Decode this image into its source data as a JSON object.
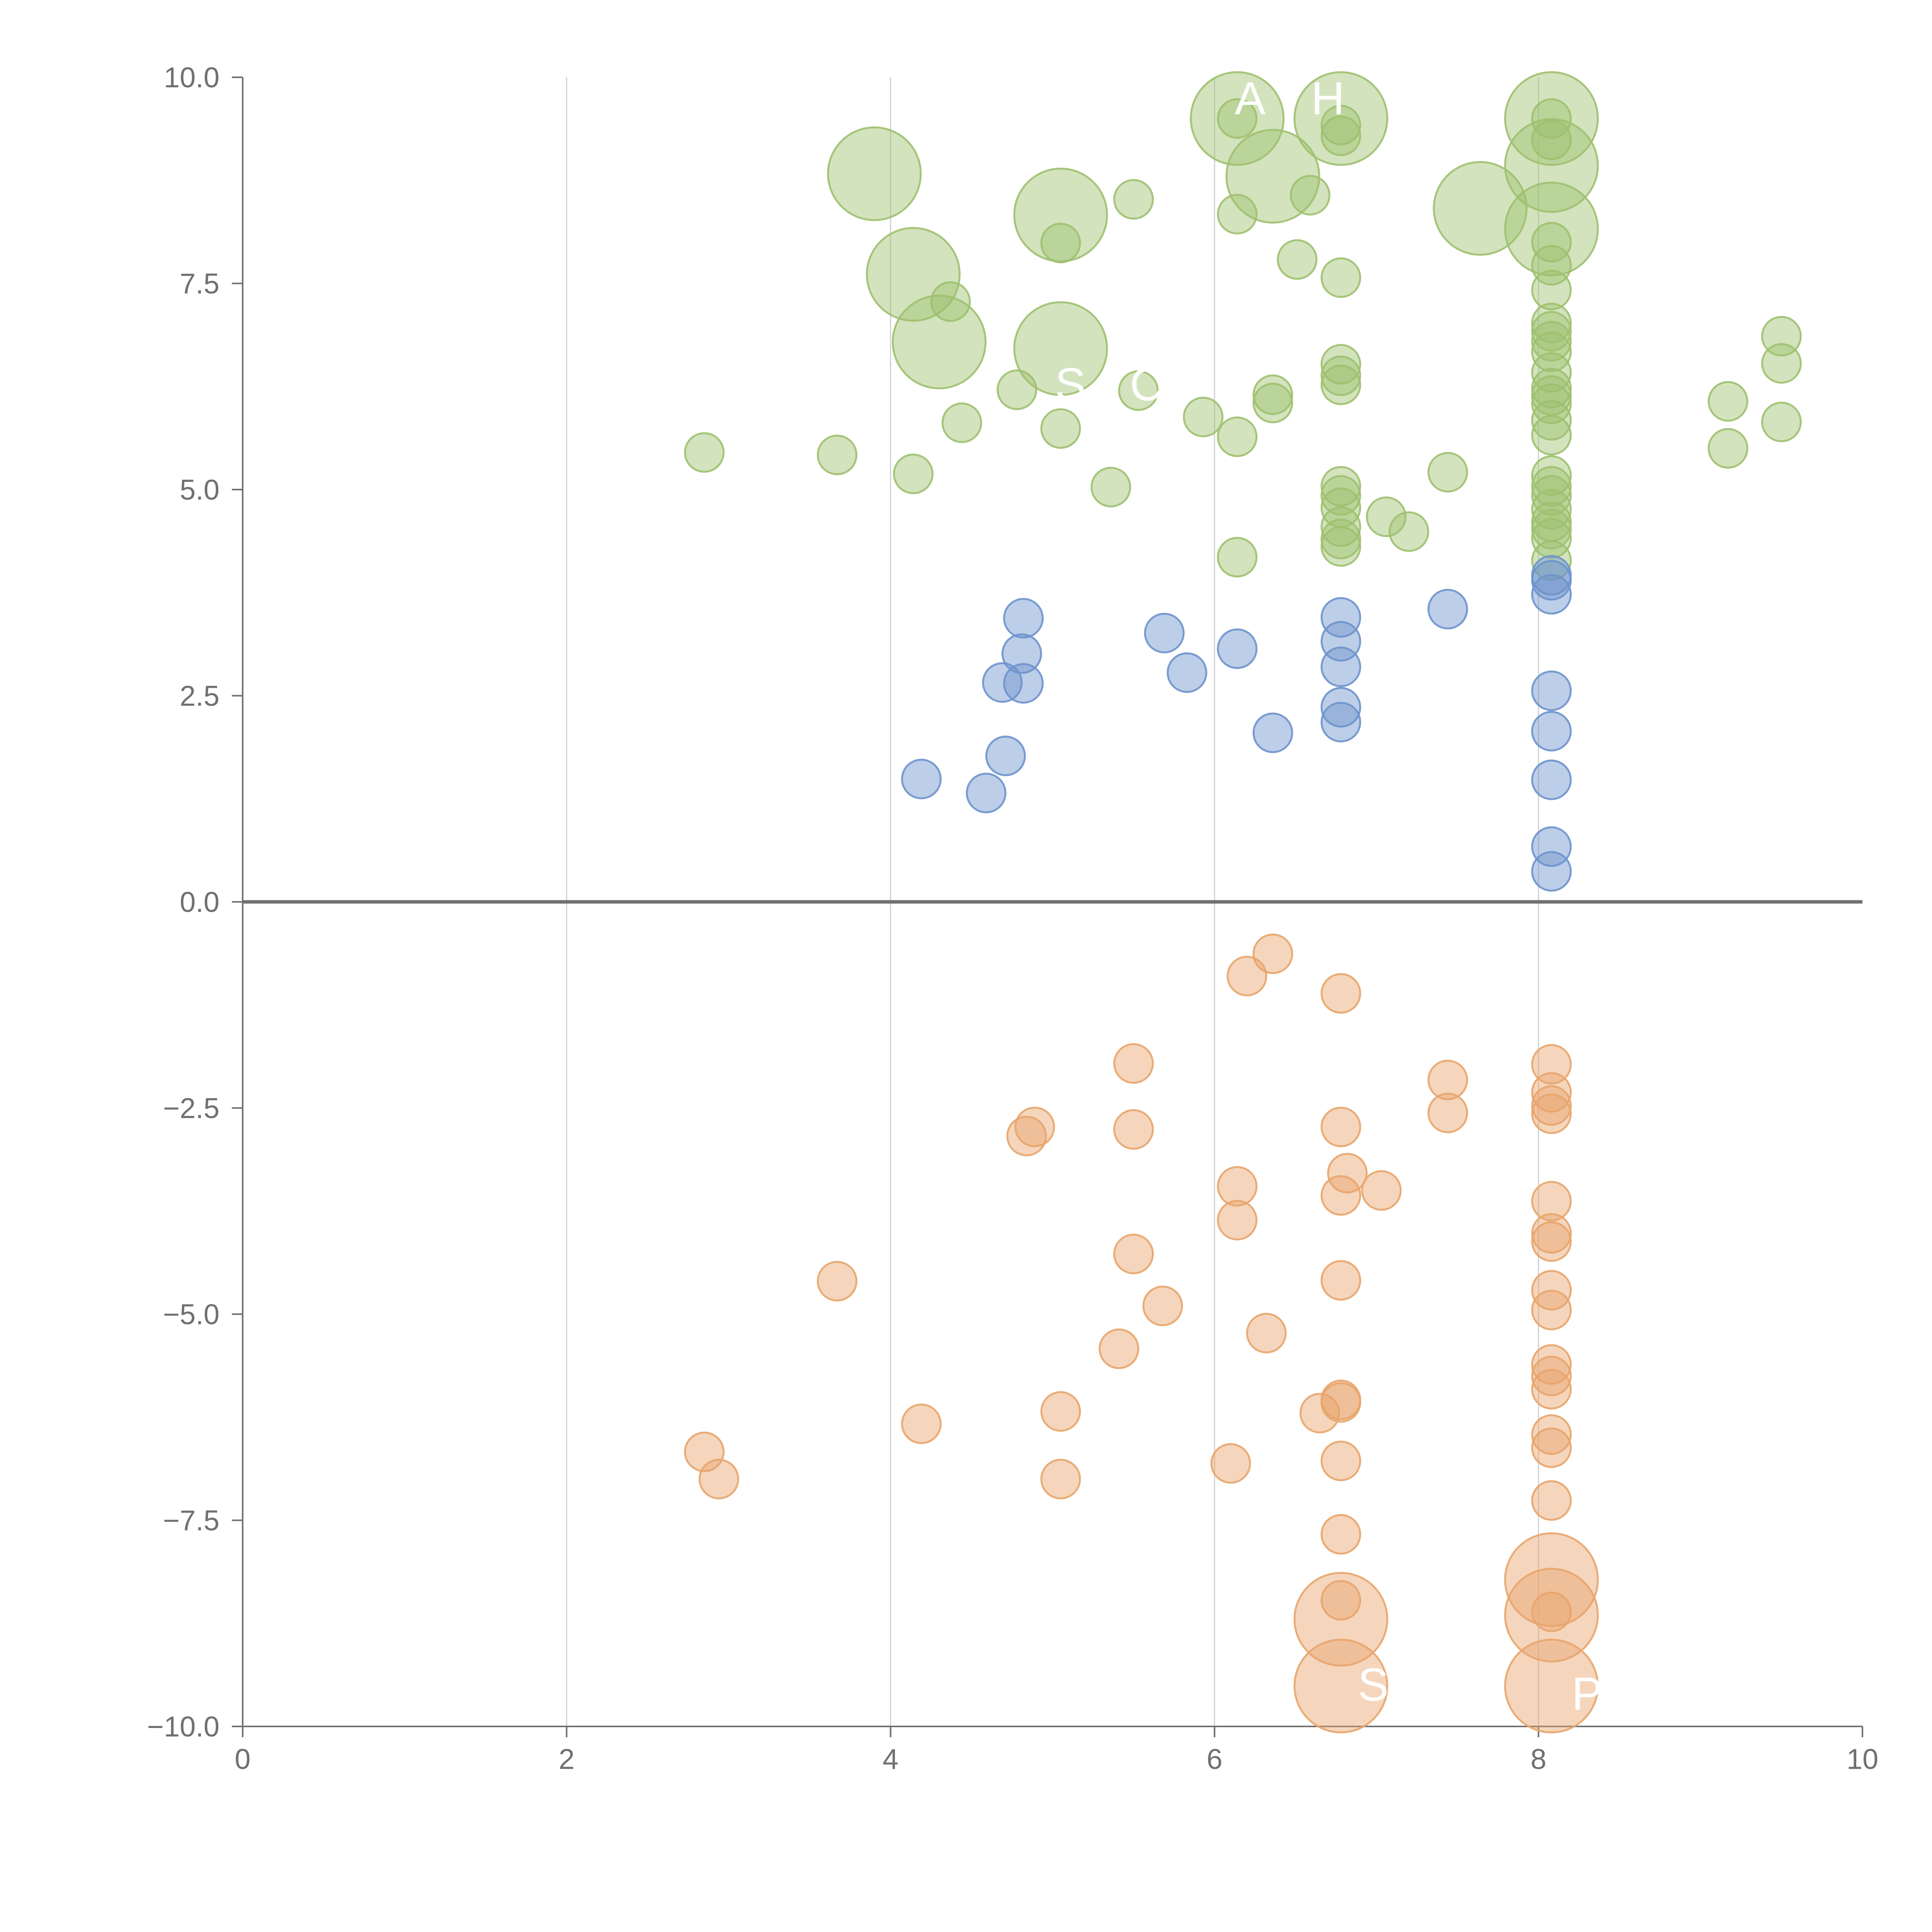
{
  "chart_data": {
    "type": "scatter",
    "title": "",
    "xlabel": "",
    "ylabel": "",
    "xlim": [
      0,
      10
    ],
    "ylim": [
      -10,
      10
    ],
    "x_ticks": [
      "0",
      "2",
      "4",
      "6",
      "8",
      "10"
    ],
    "y_ticks": [
      "10.0",
      "7.5",
      "5.0",
      "2.5",
      "0.0",
      "−2.5",
      "−5.0",
      "−7.5",
      "−10.0"
    ],
    "grid": "vertical lines at x = 2, 4, 6, 8",
    "baseline_y": 0,
    "colors": {
      "green": "#9ec06f",
      "blue": "#6d93cc",
      "orange": "#e8a56c",
      "axis": "#707070",
      "grid": "#d0d0d0"
    },
    "series": [
      {
        "name": "green",
        "color": "#9ec06f",
        "points": [
          {
            "x": 2.85,
            "y": 5.45,
            "s": 1
          },
          {
            "x": 3.67,
            "y": 5.42,
            "s": 1
          },
          {
            "x": 4.14,
            "y": 5.19,
            "s": 1
          },
          {
            "x": 4.44,
            "y": 5.81,
            "s": 1
          },
          {
            "x": 4.37,
            "y": 7.28,
            "s": 1
          },
          {
            "x": 4.78,
            "y": 6.21,
            "s": 1
          },
          {
            "x": 5.05,
            "y": 5.74,
            "s": 1
          },
          {
            "x": 5.05,
            "y": 7.99,
            "s": 1
          },
          {
            "x": 5.36,
            "y": 5.03,
            "s": 1
          },
          {
            "x": 5.5,
            "y": 8.52,
            "s": 1
          },
          {
            "x": 5.53,
            "y": 6.2,
            "s": 1
          },
          {
            "x": 5.93,
            "y": 5.88,
            "s": 1
          },
          {
            "x": 6.14,
            "y": 8.34,
            "s": 1
          },
          {
            "x": 6.14,
            "y": 9.5,
            "s": 1
          },
          {
            "x": 6.14,
            "y": 5.64,
            "s": 1
          },
          {
            "x": 6.14,
            "y": 4.18,
            "s": 1
          },
          {
            "x": 6.36,
            "y": 6.15,
            "s": 1
          },
          {
            "x": 6.36,
            "y": 6.05,
            "s": 1
          },
          {
            "x": 6.51,
            "y": 7.79,
            "s": 1
          },
          {
            "x": 6.59,
            "y": 8.57,
            "s": 1
          },
          {
            "x": 6.78,
            "y": 9.29,
            "s": 1
          },
          {
            "x": 6.78,
            "y": 9.42,
            "s": 1
          },
          {
            "x": 6.78,
            "y": 7.57,
            "s": 1
          },
          {
            "x": 6.78,
            "y": 6.52,
            "s": 1
          },
          {
            "x": 6.78,
            "y": 6.27,
            "s": 1
          },
          {
            "x": 6.78,
            "y": 6.38,
            "s": 1
          },
          {
            "x": 6.78,
            "y": 5.04,
            "s": 1
          },
          {
            "x": 6.78,
            "y": 4.93,
            "s": 1
          },
          {
            "x": 6.78,
            "y": 4.78,
            "s": 1
          },
          {
            "x": 6.78,
            "y": 4.55,
            "s": 1
          },
          {
            "x": 6.78,
            "y": 4.4,
            "s": 1
          },
          {
            "x": 6.78,
            "y": 4.31,
            "s": 1
          },
          {
            "x": 7.06,
            "y": 4.67,
            "s": 1
          },
          {
            "x": 7.2,
            "y": 4.49,
            "s": 1
          },
          {
            "x": 7.44,
            "y": 5.21,
            "s": 1
          },
          {
            "x": 8.08,
            "y": 9.5,
            "s": 1
          },
          {
            "x": 8.08,
            "y": 9.24,
            "s": 1
          },
          {
            "x": 8.08,
            "y": 8.0,
            "s": 1
          },
          {
            "x": 8.08,
            "y": 7.72,
            "s": 1
          },
          {
            "x": 8.08,
            "y": 7.42,
            "s": 1
          },
          {
            "x": 8.08,
            "y": 7.02,
            "s": 1
          },
          {
            "x": 8.08,
            "y": 6.92,
            "s": 1
          },
          {
            "x": 8.08,
            "y": 6.8,
            "s": 1
          },
          {
            "x": 8.08,
            "y": 6.67,
            "s": 1
          },
          {
            "x": 8.08,
            "y": 6.42,
            "s": 1
          },
          {
            "x": 8.08,
            "y": 6.23,
            "s": 1
          },
          {
            "x": 8.08,
            "y": 6.14,
            "s": 1
          },
          {
            "x": 8.08,
            "y": 6.04,
            "s": 1
          },
          {
            "x": 8.08,
            "y": 5.84,
            "s": 1
          },
          {
            "x": 8.08,
            "y": 5.66,
            "s": 1
          },
          {
            "x": 8.08,
            "y": 5.17,
            "s": 1
          },
          {
            "x": 8.08,
            "y": 5.04,
            "s": 1
          },
          {
            "x": 8.08,
            "y": 4.93,
            "s": 1
          },
          {
            "x": 8.08,
            "y": 4.76,
            "s": 1
          },
          {
            "x": 8.08,
            "y": 4.61,
            "s": 1
          },
          {
            "x": 8.08,
            "y": 4.52,
            "s": 1
          },
          {
            "x": 8.08,
            "y": 4.41,
            "s": 1
          },
          {
            "x": 8.08,
            "y": 4.14,
            "s": 1
          },
          {
            "x": 9.17,
            "y": 6.07,
            "s": 1
          },
          {
            "x": 9.17,
            "y": 5.5,
            "s": 1
          },
          {
            "x": 9.5,
            "y": 6.86,
            "s": 1
          },
          {
            "x": 9.5,
            "y": 6.53,
            "s": 1
          },
          {
            "x": 9.5,
            "y": 5.82,
            "s": 1
          },
          {
            "x": 3.9,
            "y": 8.83,
            "s": 2.4
          },
          {
            "x": 4.14,
            "y": 7.61,
            "s": 2.4
          },
          {
            "x": 4.3,
            "y": 6.79,
            "s": 2.4
          },
          {
            "x": 5.05,
            "y": 8.33,
            "s": 2.4
          },
          {
            "x": 5.05,
            "y": 6.71,
            "s": 2.4
          },
          {
            "x": 6.14,
            "y": 9.5,
            "s": 2.4
          },
          {
            "x": 6.36,
            "y": 8.8,
            "s": 2.4
          },
          {
            "x": 6.78,
            "y": 9.5,
            "s": 2.4
          },
          {
            "x": 7.64,
            "y": 8.41,
            "s": 2.4
          },
          {
            "x": 8.08,
            "y": 9.5,
            "s": 2.4
          },
          {
            "x": 8.08,
            "y": 8.93,
            "s": 2.4
          },
          {
            "x": 8.08,
            "y": 8.16,
            "s": 2.4
          }
        ]
      },
      {
        "name": "blue",
        "color": "#6d93cc",
        "points": [
          {
            "x": 4.19,
            "y": 1.49,
            "s": 1
          },
          {
            "x": 4.59,
            "y": 1.32,
            "s": 1
          },
          {
            "x": 4.69,
            "y": 2.66,
            "s": 1
          },
          {
            "x": 4.71,
            "y": 1.77,
            "s": 1
          },
          {
            "x": 4.81,
            "y": 3.01,
            "s": 1
          },
          {
            "x": 4.82,
            "y": 3.44,
            "s": 1
          },
          {
            "x": 4.82,
            "y": 2.65,
            "s": 1
          },
          {
            "x": 5.69,
            "y": 3.26,
            "s": 1
          },
          {
            "x": 5.83,
            "y": 2.78,
            "s": 1
          },
          {
            "x": 6.14,
            "y": 3.07,
            "s": 1
          },
          {
            "x": 6.36,
            "y": 2.05,
            "s": 1
          },
          {
            "x": 6.78,
            "y": 3.45,
            "s": 1
          },
          {
            "x": 6.78,
            "y": 3.16,
            "s": 1
          },
          {
            "x": 6.78,
            "y": 2.85,
            "s": 1
          },
          {
            "x": 6.78,
            "y": 2.36,
            "s": 1
          },
          {
            "x": 6.78,
            "y": 2.18,
            "s": 1
          },
          {
            "x": 7.44,
            "y": 3.55,
            "s": 1
          },
          {
            "x": 8.08,
            "y": 3.96,
            "s": 1
          },
          {
            "x": 8.08,
            "y": 3.9,
            "s": 1
          },
          {
            "x": 8.08,
            "y": 3.73,
            "s": 1
          },
          {
            "x": 8.08,
            "y": 2.56,
            "s": 1
          },
          {
            "x": 8.08,
            "y": 2.07,
            "s": 1
          },
          {
            "x": 8.08,
            "y": 1.48,
            "s": 1
          },
          {
            "x": 8.08,
            "y": 0.67,
            "s": 1
          },
          {
            "x": 8.08,
            "y": 0.37,
            "s": 1
          }
        ]
      },
      {
        "name": "orange",
        "color": "#e8a56c",
        "points": [
          {
            "x": 2.85,
            "y": -6.67,
            "s": 1
          },
          {
            "x": 2.94,
            "y": -7.0,
            "s": 1
          },
          {
            "x": 3.67,
            "y": -4.6,
            "s": 1
          },
          {
            "x": 4.19,
            "y": -6.33,
            "s": 1
          },
          {
            "x": 4.84,
            "y": -2.84,
            "s": 1
          },
          {
            "x": 4.89,
            "y": -2.73,
            "s": 1
          },
          {
            "x": 5.05,
            "y": -6.18,
            "s": 1
          },
          {
            "x": 5.05,
            "y": -7.0,
            "s": 1
          },
          {
            "x": 5.41,
            "y": -5.42,
            "s": 1
          },
          {
            "x": 5.5,
            "y": -1.96,
            "s": 1
          },
          {
            "x": 5.5,
            "y": -2.76,
            "s": 1
          },
          {
            "x": 5.5,
            "y": -4.27,
            "s": 1
          },
          {
            "x": 5.68,
            "y": -4.9,
            "s": 1
          },
          {
            "x": 6.1,
            "y": -6.81,
            "s": 1
          },
          {
            "x": 6.14,
            "y": -3.45,
            "s": 1
          },
          {
            "x": 6.14,
            "y": -3.86,
            "s": 1
          },
          {
            "x": 6.2,
            "y": -0.9,
            "s": 1
          },
          {
            "x": 6.32,
            "y": -5.23,
            "s": 1
          },
          {
            "x": 6.36,
            "y": -0.63,
            "s": 1
          },
          {
            "x": 6.65,
            "y": -6.2,
            "s": 1
          },
          {
            "x": 6.78,
            "y": -1.11,
            "s": 1
          },
          {
            "x": 6.78,
            "y": -2.73,
            "s": 1
          },
          {
            "x": 6.82,
            "y": -3.29,
            "s": 1
          },
          {
            "x": 6.78,
            "y": -3.56,
            "s": 1
          },
          {
            "x": 6.78,
            "y": -4.59,
            "s": 1
          },
          {
            "x": 6.78,
            "y": -6.04,
            "s": 1
          },
          {
            "x": 6.78,
            "y": -6.07,
            "s": 1
          },
          {
            "x": 6.78,
            "y": -6.78,
            "s": 1
          },
          {
            "x": 6.78,
            "y": -7.67,
            "s": 1
          },
          {
            "x": 6.78,
            "y": -8.47,
            "s": 1
          },
          {
            "x": 7.03,
            "y": -3.5,
            "s": 1
          },
          {
            "x": 7.44,
            "y": -2.16,
            "s": 1
          },
          {
            "x": 7.44,
            "y": -2.56,
            "s": 1
          },
          {
            "x": 8.08,
            "y": -1.97,
            "s": 1
          },
          {
            "x": 8.08,
            "y": -2.31,
            "s": 1
          },
          {
            "x": 8.08,
            "y": -2.47,
            "s": 1
          },
          {
            "x": 8.08,
            "y": -2.57,
            "s": 1
          },
          {
            "x": 8.08,
            "y": -3.63,
            "s": 1
          },
          {
            "x": 8.08,
            "y": -4.02,
            "s": 1
          },
          {
            "x": 8.08,
            "y": -4.12,
            "s": 1
          },
          {
            "x": 8.08,
            "y": -4.71,
            "s": 1
          },
          {
            "x": 8.08,
            "y": -4.95,
            "s": 1
          },
          {
            "x": 8.08,
            "y": -5.61,
            "s": 1
          },
          {
            "x": 8.08,
            "y": -5.75,
            "s": 1
          },
          {
            "x": 8.08,
            "y": -5.91,
            "s": 1
          },
          {
            "x": 8.08,
            "y": -6.46,
            "s": 1
          },
          {
            "x": 8.08,
            "y": -6.62,
            "s": 1
          },
          {
            "x": 8.08,
            "y": -7.26,
            "s": 1
          },
          {
            "x": 8.08,
            "y": -8.61,
            "s": 1
          },
          {
            "x": 6.78,
            "y": -8.7,
            "s": 2.4
          },
          {
            "x": 6.78,
            "y": -9.51,
            "s": 2.4
          },
          {
            "x": 8.08,
            "y": -8.22,
            "s": 2.4
          },
          {
            "x": 8.08,
            "y": -8.65,
            "s": 2.4
          },
          {
            "x": 8.08,
            "y": -9.51,
            "s": 2.4
          }
        ]
      }
    ],
    "annotations": [
      {
        "text": "A",
        "x": 6.22,
        "y": 9.75
      },
      {
        "text": "H",
        "x": 6.7,
        "y": 9.75
      },
      {
        "text": "S",
        "x": 5.11,
        "y": 6.28
      },
      {
        "text": "C",
        "x": 5.58,
        "y": 6.28
      },
      {
        "text": "S",
        "x": 6.98,
        "y": -9.49
      },
      {
        "text": "P",
        "x": 8.3,
        "y": -9.6
      }
    ]
  }
}
